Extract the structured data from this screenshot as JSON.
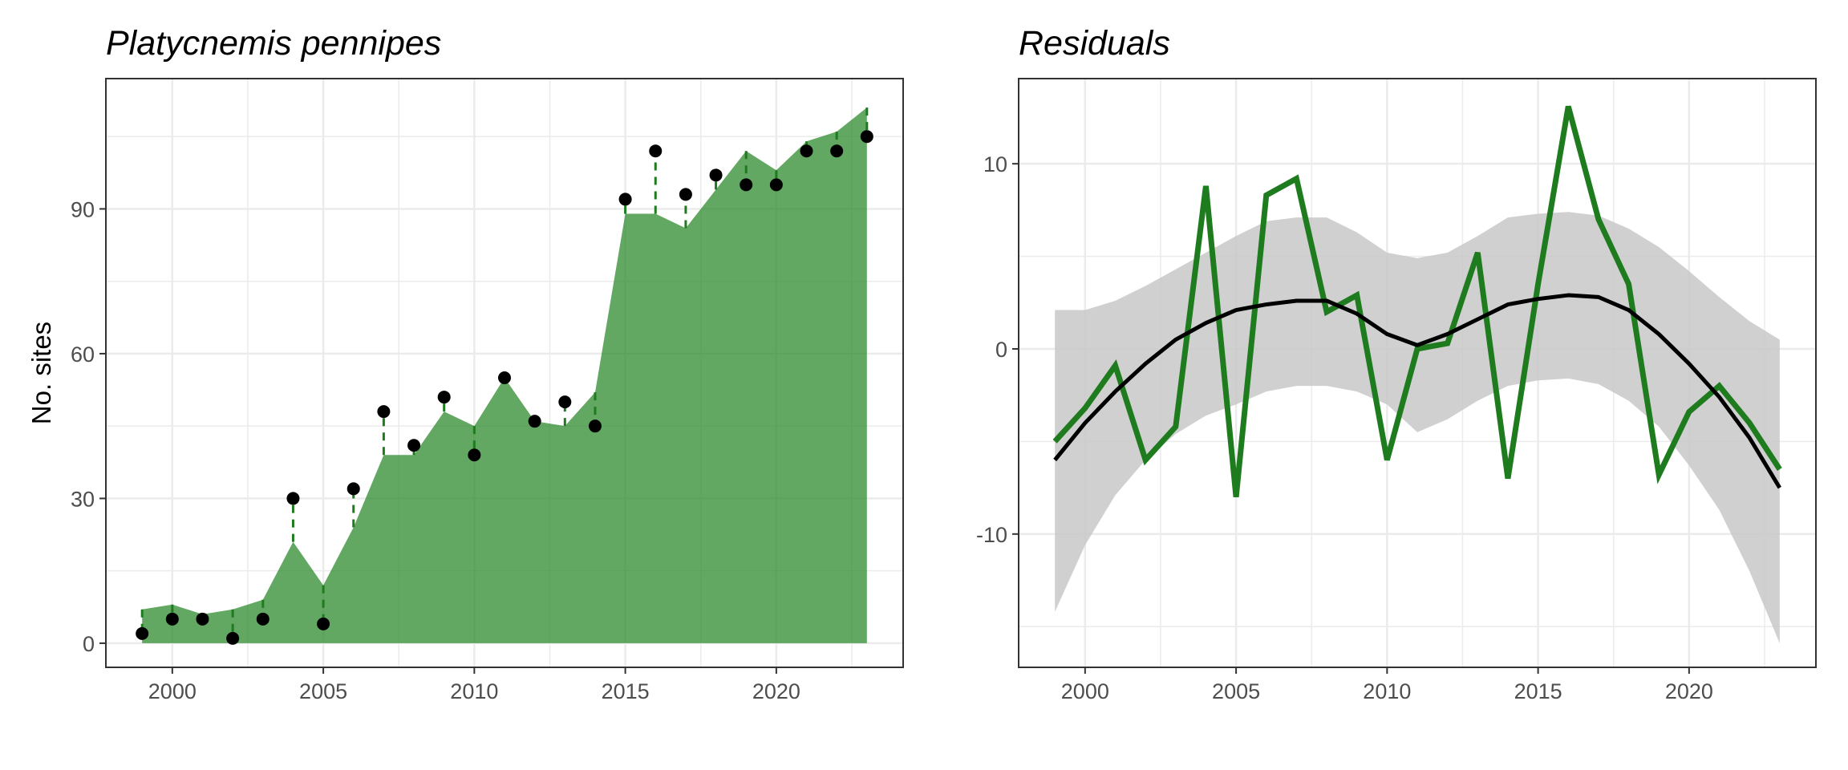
{
  "colors": {
    "area_fill": "#2E8B2E",
    "points": "#000000",
    "residual_line": "#1E7B1E",
    "dashes": "#1E7B1E",
    "smooth_line": "#000000",
    "ribbon": "#C8C8C8",
    "grid": "#EBEBEB",
    "panel_border": "#333333"
  },
  "chart_data": [
    {
      "type": "area",
      "title": "Platycnemis pennipes",
      "xlabel": "",
      "ylabel": "No. sites",
      "xlim": [
        1997.8,
        2024.2
      ],
      "ylim": [
        -5,
        117
      ],
      "xticks": [
        2000,
        2005,
        2010,
        2015,
        2020
      ],
      "yticks": [
        0,
        30,
        60,
        90
      ],
      "grid": true,
      "x": [
        1999,
        2000,
        2001,
        2002,
        2003,
        2004,
        2005,
        2006,
        2007,
        2008,
        2009,
        2010,
        2011,
        2012,
        2013,
        2014,
        2015,
        2016,
        2017,
        2018,
        2019,
        2020,
        2021,
        2022,
        2023
      ],
      "fitted": [
        7,
        8,
        6,
        7,
        9,
        21,
        12,
        24,
        39,
        39,
        48,
        45,
        55,
        46,
        45,
        52,
        89,
        89,
        86,
        94,
        102,
        98,
        104,
        106,
        111
      ],
      "observed": [
        2,
        5,
        5,
        1,
        5,
        30,
        4,
        32,
        48,
        41,
        51,
        39,
        55,
        46,
        50,
        45,
        92,
        102,
        93,
        97,
        95,
        95,
        102,
        102,
        105
      ]
    },
    {
      "type": "line",
      "title": "Residuals",
      "xlabel": "",
      "ylabel": "",
      "xlim": [
        1997.8,
        2024.2
      ],
      "ylim": [
        -17.2,
        14.6
      ],
      "xticks": [
        2000,
        2005,
        2010,
        2015,
        2020
      ],
      "yticks": [
        -10,
        0,
        10
      ],
      "grid": true,
      "x": [
        1999,
        2000,
        2001,
        2002,
        2003,
        2004,
        2005,
        2006,
        2007,
        2008,
        2009,
        2010,
        2011,
        2012,
        2013,
        2014,
        2015,
        2016,
        2017,
        2018,
        2019,
        2020,
        2021,
        2022,
        2023
      ],
      "residuals": [
        -5,
        -3.2,
        -0.9,
        -6,
        -4.2,
        8.8,
        -8,
        8.3,
        9.2,
        2,
        2.9,
        -6,
        0,
        0.3,
        5.2,
        -7,
        3.5,
        13.1,
        7,
        3.5,
        -6.8,
        -3.4,
        -2,
        -4,
        -6.5
      ],
      "smooth": [
        -6,
        -4,
        -2.3,
        -0.8,
        0.5,
        1.4,
        2.1,
        2.4,
        2.6,
        2.6,
        1.9,
        0.8,
        0.2,
        0.8,
        1.6,
        2.4,
        2.7,
        2.9,
        2.8,
        2.1,
        0.8,
        -0.8,
        -2.6,
        -4.8,
        -7.5
      ],
      "ribbon_upper": [
        2.1,
        2.1,
        2.6,
        3.4,
        4.3,
        5.2,
        6.1,
        6.9,
        7.1,
        7.1,
        6.3,
        5.2,
        4.9,
        5.2,
        6.1,
        7.1,
        7.3,
        7.4,
        7.2,
        6.5,
        5.5,
        4.2,
        2.8,
        1.5,
        0.5
      ],
      "ribbon_lower": [
        -14.2,
        -10.6,
        -7.9,
        -6,
        -4.6,
        -3.6,
        -3,
        -2.3,
        -2,
        -2,
        -2.3,
        -3,
        -4.5,
        -3.8,
        -2.8,
        -2,
        -1.7,
        -1.6,
        -1.9,
        -2.8,
        -4.2,
        -6.3,
        -8.7,
        -12,
        -15.9
      ]
    }
  ]
}
